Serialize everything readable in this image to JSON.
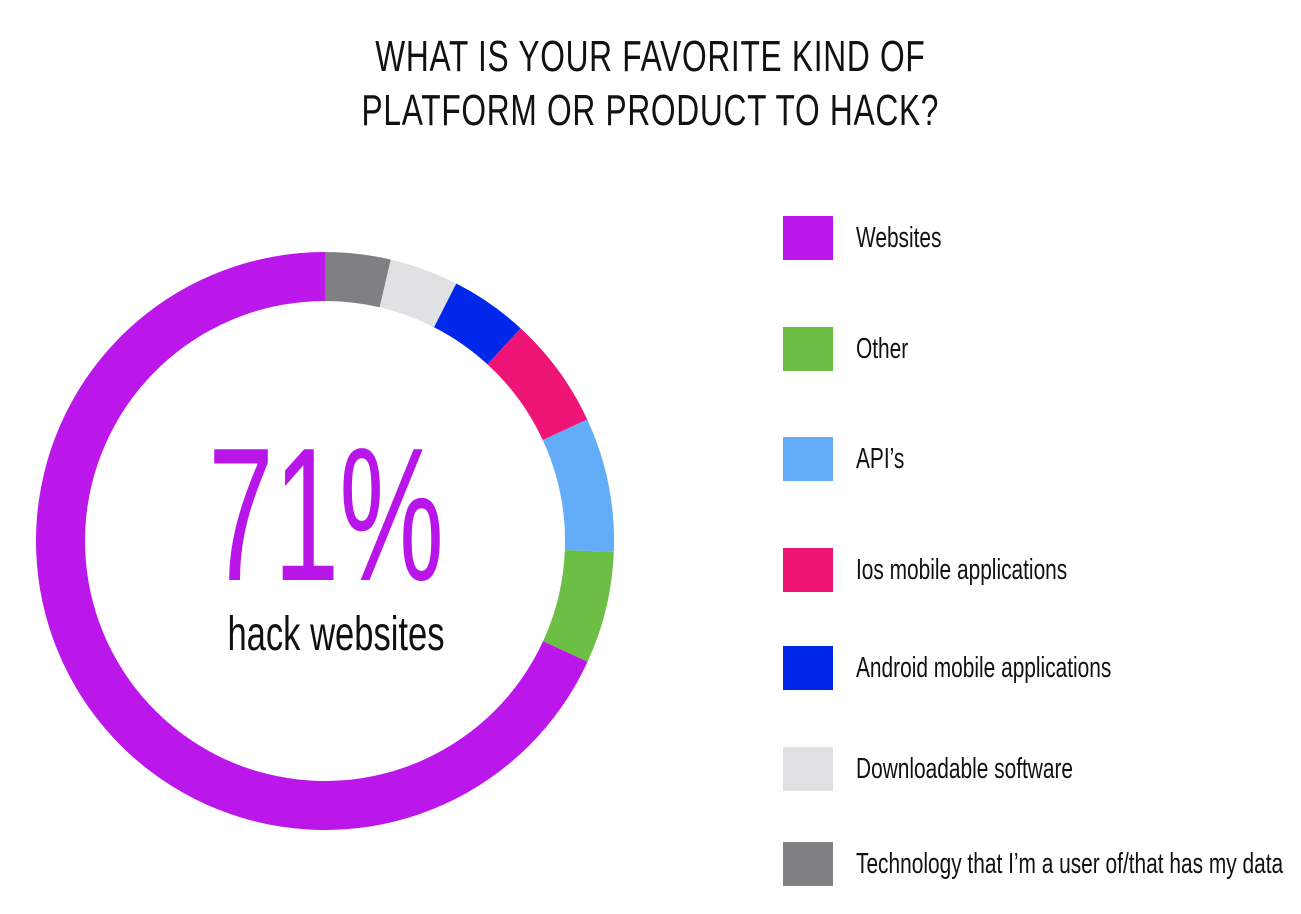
{
  "chart_data": {
    "type": "pie",
    "title_lines": [
      "WHAT IS YOUR FAVORITE KIND OF",
      "PLATFORM OR PRODUCT TO HACK?"
    ],
    "center_value": "71%",
    "center_label": "hack websites",
    "categories": [
      "Websites",
      "Other",
      "API’s",
      "Ios mobile applications",
      "Android mobile applications",
      "Downloadable software",
      "Technology that I’m a user of/that has my data"
    ],
    "values": [
      70.8,
      6.5,
      7.8,
      6.5,
      4.5,
      4.0,
      3.8
    ],
    "colors": [
      "#bb16ea",
      "#6cbe45",
      "#62acf8",
      "#ee1577",
      "#0128ea",
      "#e0e1e3",
      "#808083"
    ],
    "legend_position": "right"
  }
}
